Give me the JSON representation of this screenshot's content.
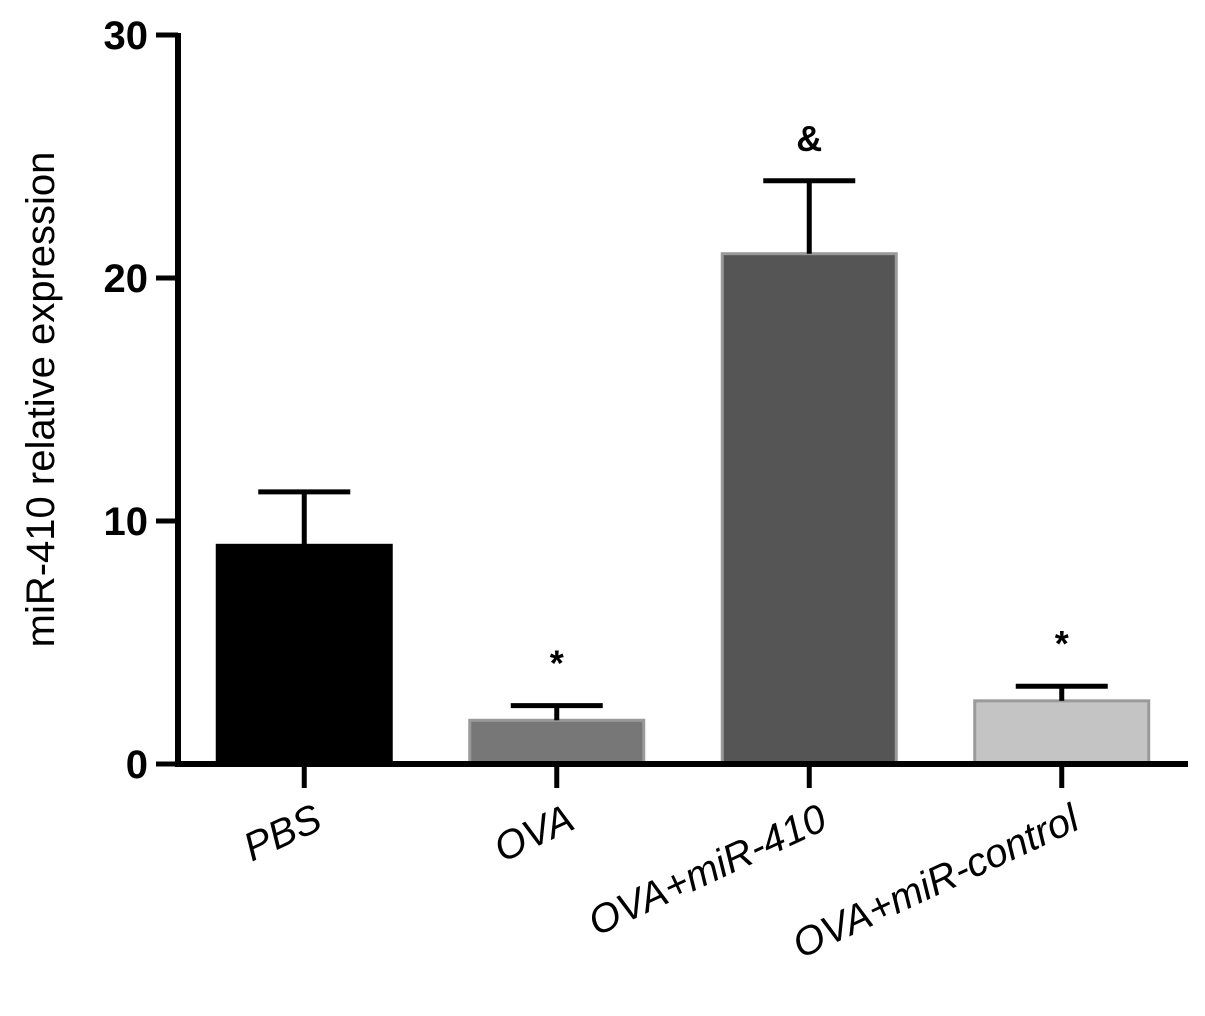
{
  "chart_data": {
    "type": "bar",
    "ylabel": "miR-410 relative expression",
    "xlabel": "",
    "title": "",
    "ylim": [
      0,
      30
    ],
    "yticks": [
      0,
      10,
      20,
      30
    ],
    "grid": false,
    "categories": [
      "PBS",
      "OVA",
      "OVA+miR-410",
      "OVA+miR-control"
    ],
    "values": [
      9.0,
      1.8,
      21.0,
      2.6
    ],
    "errors": [
      2.2,
      0.6,
      3.0,
      0.6
    ],
    "annotations": [
      "",
      "*",
      "&",
      "*"
    ],
    "colors": [
      "#000000",
      "#777777",
      "#555555",
      "#c4c4c4"
    ]
  }
}
